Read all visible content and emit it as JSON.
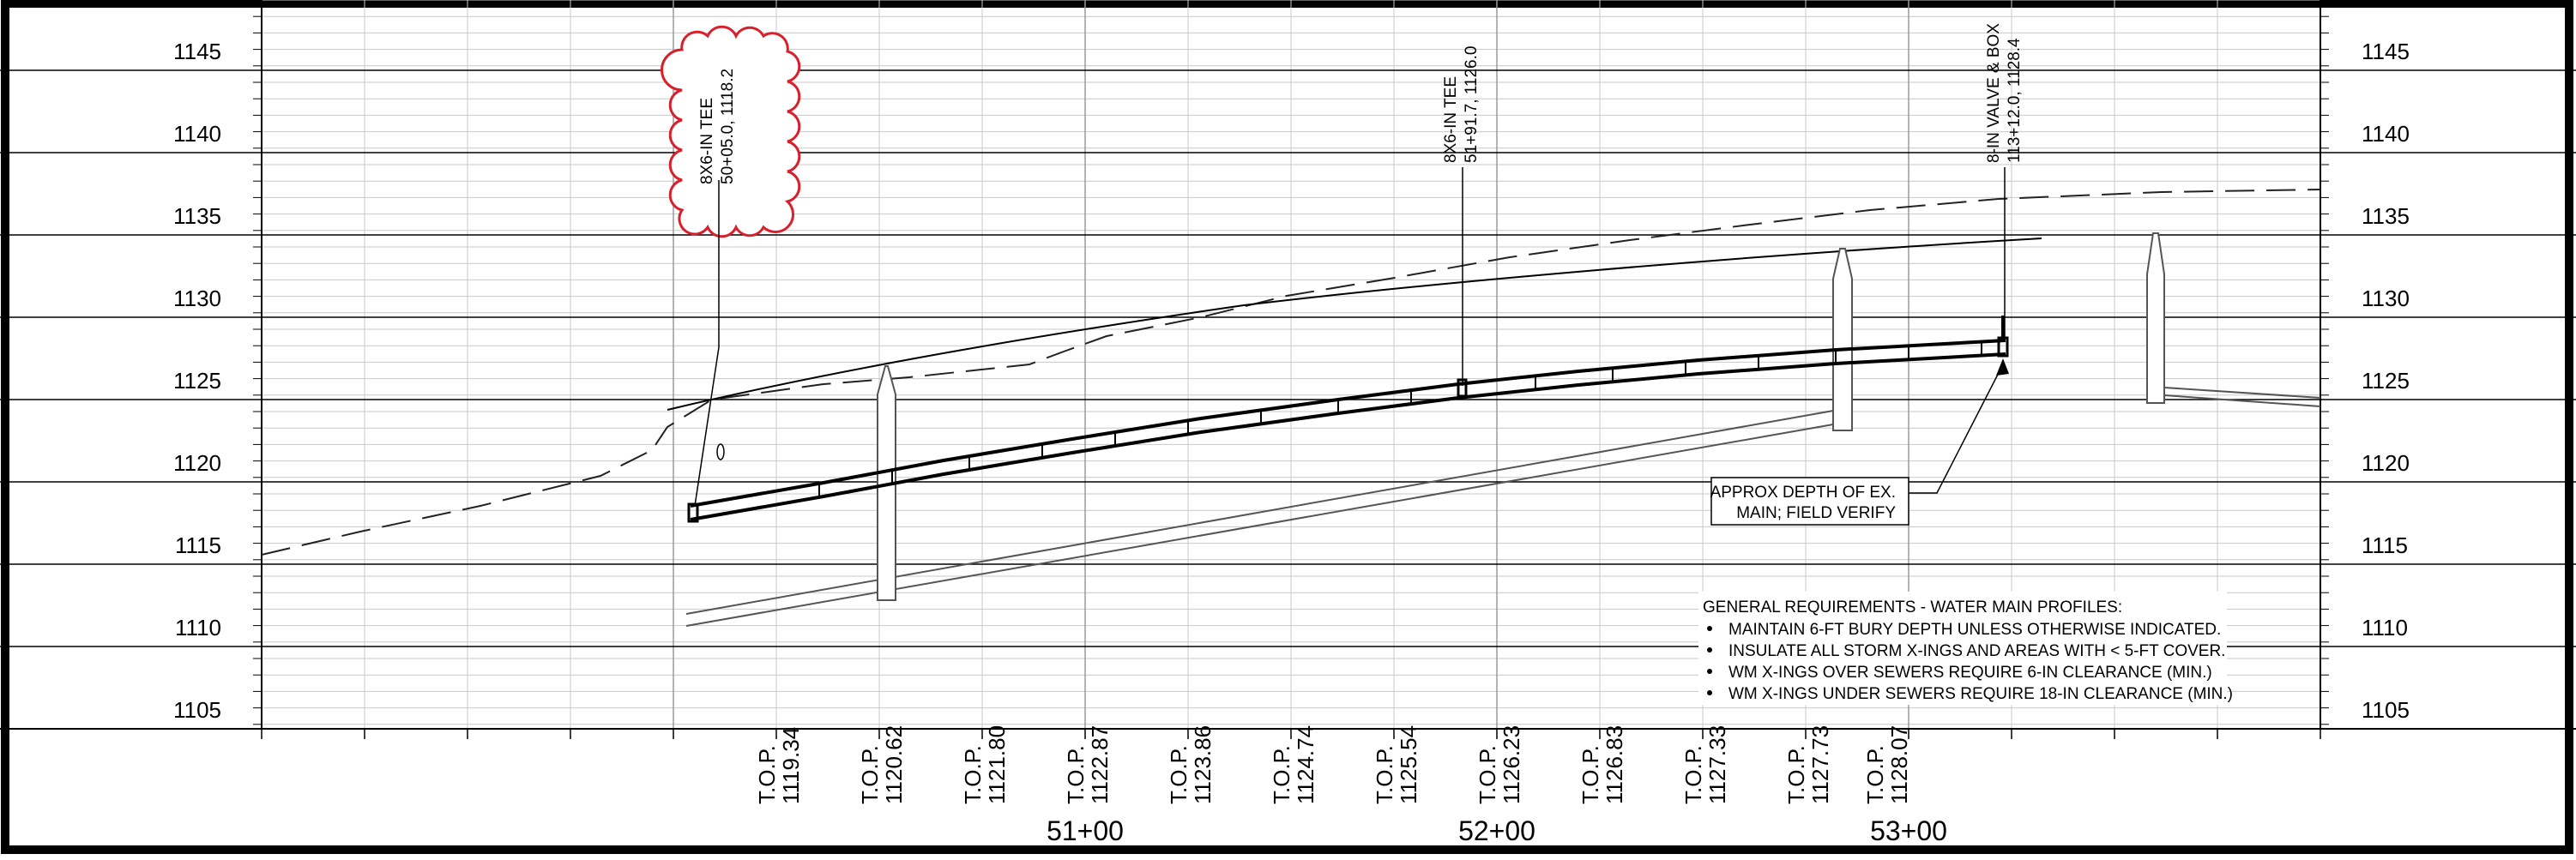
{
  "drawing": {
    "type": "water main profile",
    "elevation_labels": [
      "1145",
      "1140",
      "1135",
      "1130",
      "1125",
      "1120",
      "1115",
      "1110",
      "1105"
    ],
    "station_labels": [
      "51+00",
      "52+00",
      "53+00"
    ],
    "top_of_pipe": [
      {
        "label": "T.O.P.",
        "value": "1119.34"
      },
      {
        "label": "T.O.P.",
        "value": "1120.62"
      },
      {
        "label": "T.O.P.",
        "value": "1121.80"
      },
      {
        "label": "T.O.P.",
        "value": "1122.87"
      },
      {
        "label": "T.O.P.",
        "value": "1123.86"
      },
      {
        "label": "T.O.P.",
        "value": "1124.74"
      },
      {
        "label": "T.O.P.",
        "value": "1125.54"
      },
      {
        "label": "T.O.P.",
        "value": "1126.23"
      },
      {
        "label": "T.O.P.",
        "value": "1126.83"
      },
      {
        "label": "T.O.P.",
        "value": "1127.33"
      },
      {
        "label": "T.O.P.",
        "value": "1127.73"
      },
      {
        "label": "T.O.P.",
        "value": "1128.07"
      }
    ],
    "callouts": {
      "tee1": {
        "line1": "8X6-IN TEE",
        "line2": "50+05.0, 1118.2"
      },
      "tee2": {
        "line1": "8X6-IN TEE",
        "line2": "51+91.7, 1126.0"
      },
      "valve": {
        "line1": "8-IN VALVE & BOX",
        "line2": "113+12.0, 1128.4"
      }
    },
    "depth_note": {
      "line1": "APPROX DEPTH OF EX.",
      "line2": "MAIN; FIELD VERIFY"
    },
    "general_requirements": {
      "title": "GENERAL REQUIREMENTS - WATER MAIN PROFILES:",
      "items": [
        "MAINTAIN 6-FT BURY DEPTH UNLESS OTHERWISE INDICATED.",
        "INSULATE ALL STORM X-INGS AND AREAS WITH < 5-FT COVER.",
        "WM X-INGS OVER SEWERS REQUIRE 6-IN CLEARANCE (MIN.)",
        "WM X-INGS UNDER SEWERS REQUIRE 18-IN CLEARANCE (MIN.)"
      ]
    },
    "colors": {
      "revision_cloud": "#d8202c",
      "grid_minor": "#c8c8c8",
      "grid_major": "#000000"
    }
  }
}
